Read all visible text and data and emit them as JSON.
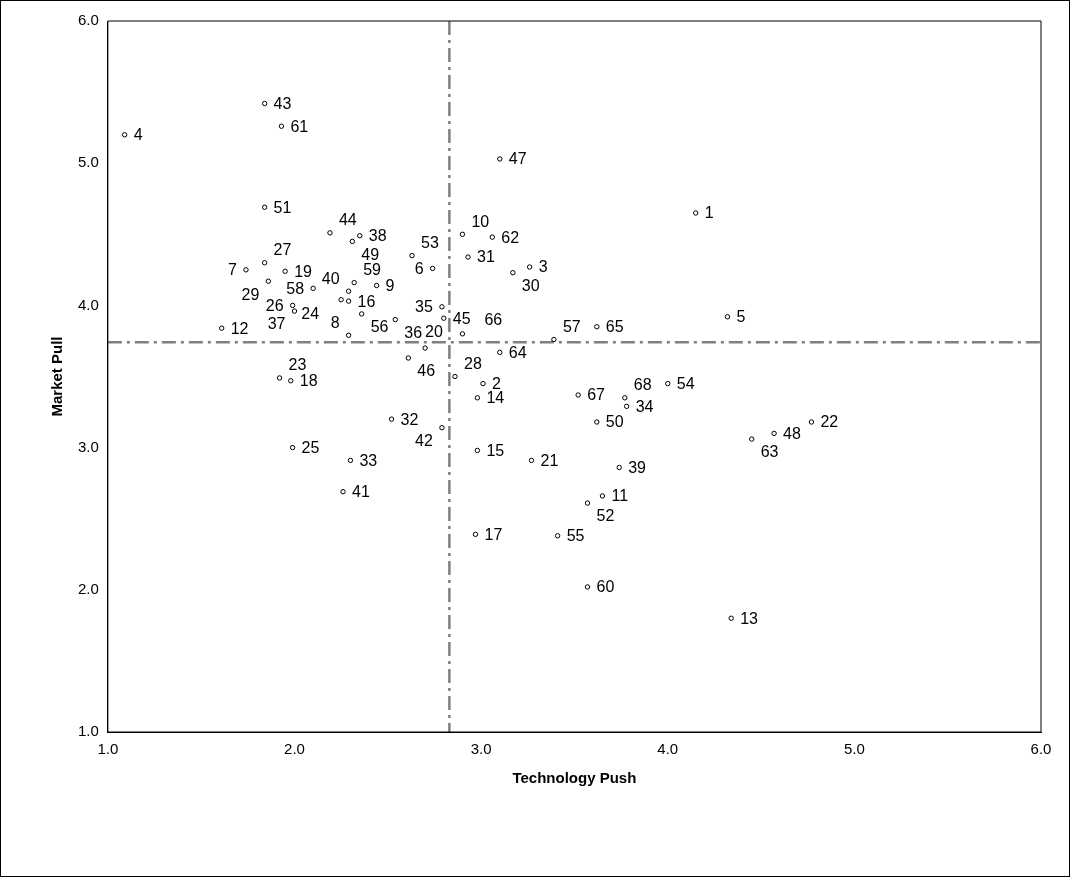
{
  "chart_data": {
    "type": "scatter",
    "xlabel": "Technology Push",
    "ylabel": "Market Pull",
    "xlim": [
      1,
      6
    ],
    "ylim": [
      1,
      6
    ],
    "xticks": [
      {
        "value": 1,
        "label": "1.0"
      },
      {
        "value": 2,
        "label": "2.0"
      },
      {
        "value": 3,
        "label": "3.0"
      },
      {
        "value": 4,
        "label": "4.0"
      },
      {
        "value": 5,
        "label": "5.0"
      },
      {
        "value": 6,
        "label": "6.0"
      }
    ],
    "yticks": [
      {
        "value": 1,
        "label": "1.0"
      },
      {
        "value": 2,
        "label": "2.0"
      },
      {
        "value": 3,
        "label": "3.0"
      },
      {
        "value": 4,
        "label": "4.0"
      },
      {
        "value": 5,
        "label": "5.0"
      },
      {
        "value": 6,
        "label": "6.0"
      }
    ],
    "grid": false,
    "legend": false,
    "marker": "circle",
    "series": [
      {
        "color": "#000000",
        "x": [
          4.15,
          3.01,
          3.26,
          1.09,
          4.32,
          2.74,
          1.74,
          2.29,
          2.44,
          2.9,
          3.65,
          1.61,
          4.34,
          2.98,
          2.98,
          2.29,
          2.97,
          1.98,
          1.95,
          2.7,
          3.27,
          4.77,
          1.92,
          2.25,
          1.99,
          1.99,
          1.84,
          2.86,
          1.86,
          3.17,
          2.93,
          2.52,
          2.3,
          3.78,
          2.79,
          2.54,
          2.0,
          2.35,
          3.74,
          2.29,
          2.26,
          2.79,
          1.84,
          2.19,
          2.8,
          2.61,
          3.1,
          4.57,
          2.31,
          3.62,
          1.84,
          3.57,
          2.63,
          4.0,
          3.41,
          2.36,
          3.39,
          2.1,
          2.32,
          3.57,
          1.93,
          3.06,
          4.45,
          3.1,
          3.62,
          2.9,
          3.52,
          3.77
        ],
        "values": [
          4.65,
          3.45,
          4.27,
          5.2,
          3.92,
          4.26,
          4.25,
          3.79,
          4.14,
          4.5,
          2.66,
          3.84,
          1.8,
          3.35,
          2.98,
          4.03,
          2.39,
          3.47,
          4.24,
          3.7,
          2.91,
          3.18,
          3.49,
          4.04,
          3.0,
          4.0,
          4.3,
          3.5,
          4.17,
          4.23,
          4.34,
          3.2,
          2.91,
          3.29,
          3.99,
          3.9,
          3.96,
          4.49,
          2.86,
          4.1,
          2.69,
          3.14,
          5.42,
          4.51,
          3.91,
          3.63,
          5.03,
          3.1,
          4.45,
          3.18,
          4.69,
          2.61,
          4.35,
          3.45,
          2.38,
          3.94,
          3.76,
          4.12,
          4.16,
          2.02,
          5.26,
          4.48,
          3.06,
          3.67,
          3.85,
          3.8,
          3.37,
          3.35
        ]
      }
    ],
    "ref_lines": [
      {
        "axis": "x",
        "value": 2.83,
        "color": "#808080",
        "line_style": "dashed"
      },
      {
        "axis": "y",
        "value": 3.74,
        "color": "#808080",
        "line_style": "dashed"
      }
    ],
    "annotations": [
      {
        "text": "1",
        "x": 4.15,
        "y": 4.65
      },
      {
        "text": "2",
        "x": 3.01,
        "y": 3.45
      },
      {
        "text": "3",
        "x": 3.26,
        "y": 4.27
      },
      {
        "text": "4",
        "x": 1.09,
        "y": 5.2
      },
      {
        "text": "5",
        "x": 4.32,
        "y": 3.92
      },
      {
        "text": "6",
        "x": 2.74,
        "y": 4.26
      },
      {
        "text": "7",
        "x": 1.74,
        "y": 4.25
      },
      {
        "text": "8",
        "x": 2.29,
        "y": 3.79
      },
      {
        "text": "9",
        "x": 2.44,
        "y": 4.14
      },
      {
        "text": "10",
        "x": 2.9,
        "y": 4.5
      },
      {
        "text": "11",
        "x": 3.65,
        "y": 2.66
      },
      {
        "text": "12",
        "x": 1.61,
        "y": 3.84
      },
      {
        "text": "13",
        "x": 4.34,
        "y": 1.8
      },
      {
        "text": "14",
        "x": 2.98,
        "y": 3.35
      },
      {
        "text": "15",
        "x": 2.98,
        "y": 2.98
      },
      {
        "text": "16",
        "x": 2.29,
        "y": 4.03
      },
      {
        "text": "17",
        "x": 2.97,
        "y": 2.39
      },
      {
        "text": "18",
        "x": 1.98,
        "y": 3.47
      },
      {
        "text": "19",
        "x": 1.95,
        "y": 4.24
      },
      {
        "text": "20",
        "x": 2.7,
        "y": 3.7
      },
      {
        "text": "21",
        "x": 3.27,
        "y": 2.91
      },
      {
        "text": "22",
        "x": 4.77,
        "y": 3.18
      },
      {
        "text": "23",
        "x": 1.92,
        "y": 3.49
      },
      {
        "text": "24",
        "x": 2.25,
        "y": 4.04
      },
      {
        "text": "25",
        "x": 1.99,
        "y": 3.0
      },
      {
        "text": "26",
        "x": 1.99,
        "y": 4.0
      },
      {
        "text": "27",
        "x": 1.84,
        "y": 4.3
      },
      {
        "text": "28",
        "x": 2.86,
        "y": 3.5
      },
      {
        "text": "29",
        "x": 1.86,
        "y": 4.17
      },
      {
        "text": "30",
        "x": 3.17,
        "y": 4.23
      },
      {
        "text": "31",
        "x": 2.93,
        "y": 4.34
      },
      {
        "text": "32",
        "x": 2.52,
        "y": 3.2
      },
      {
        "text": "33",
        "x": 2.3,
        "y": 2.91
      },
      {
        "text": "34",
        "x": 3.78,
        "y": 3.29
      },
      {
        "text": "35",
        "x": 2.79,
        "y": 3.99
      },
      {
        "text": "36",
        "x": 2.54,
        "y": 3.9
      },
      {
        "text": "37",
        "x": 2.0,
        "y": 3.96
      },
      {
        "text": "38",
        "x": 2.35,
        "y": 4.49
      },
      {
        "text": "39",
        "x": 3.74,
        "y": 2.86
      },
      {
        "text": "40",
        "x": 2.29,
        "y": 4.1
      },
      {
        "text": "41",
        "x": 2.26,
        "y": 2.69
      },
      {
        "text": "42",
        "x": 2.79,
        "y": 3.14
      },
      {
        "text": "43",
        "x": 1.84,
        "y": 5.42
      },
      {
        "text": "44",
        "x": 2.19,
        "y": 4.51
      },
      {
        "text": "45",
        "x": 2.8,
        "y": 3.91
      },
      {
        "text": "46",
        "x": 2.61,
        "y": 3.63
      },
      {
        "text": "47",
        "x": 3.1,
        "y": 5.03
      },
      {
        "text": "48",
        "x": 4.57,
        "y": 3.1
      },
      {
        "text": "49",
        "x": 2.31,
        "y": 4.45
      },
      {
        "text": "50",
        "x": 3.62,
        "y": 3.18
      },
      {
        "text": "51",
        "x": 1.84,
        "y": 4.69
      },
      {
        "text": "52",
        "x": 3.57,
        "y": 2.61
      },
      {
        "text": "53",
        "x": 2.63,
        "y": 4.35
      },
      {
        "text": "54",
        "x": 4.0,
        "y": 3.45
      },
      {
        "text": "55",
        "x": 3.41,
        "y": 2.38
      },
      {
        "text": "56",
        "x": 2.36,
        "y": 3.94
      },
      {
        "text": "57",
        "x": 3.39,
        "y": 3.76
      },
      {
        "text": "58",
        "x": 2.1,
        "y": 4.12
      },
      {
        "text": "59",
        "x": 2.32,
        "y": 4.16
      },
      {
        "text": "60",
        "x": 3.57,
        "y": 2.02
      },
      {
        "text": "61",
        "x": 1.93,
        "y": 5.26
      },
      {
        "text": "62",
        "x": 3.06,
        "y": 4.48
      },
      {
        "text": "63",
        "x": 4.45,
        "y": 3.06
      },
      {
        "text": "64",
        "x": 3.1,
        "y": 3.67
      },
      {
        "text": "65",
        "x": 3.62,
        "y": 3.85
      },
      {
        "text": "66",
        "x": 2.9,
        "y": 3.8
      },
      {
        "text": "67",
        "x": 3.52,
        "y": 3.37
      },
      {
        "text": "68",
        "x": 3.77,
        "y": 3.35
      }
    ]
  }
}
